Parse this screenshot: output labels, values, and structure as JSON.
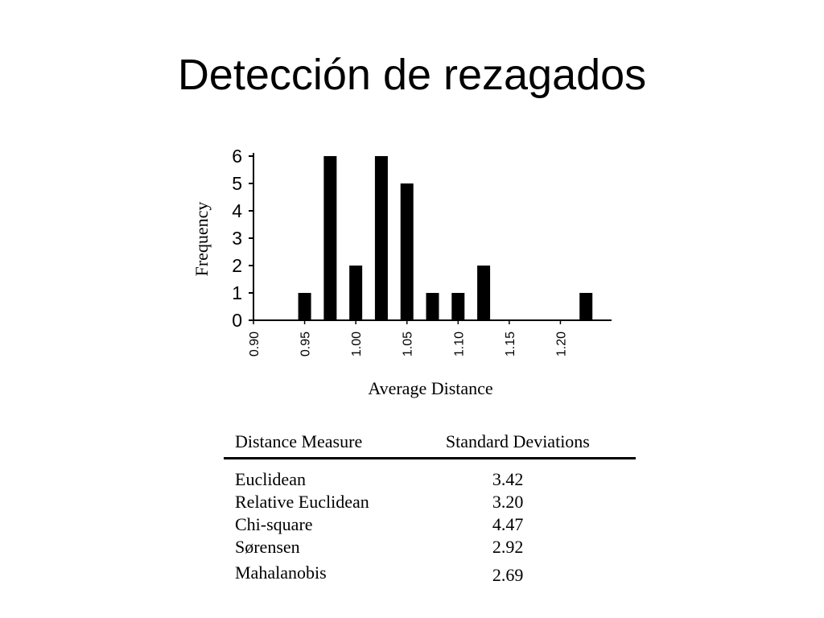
{
  "slide": {
    "title": "Detección de rezagados"
  },
  "chart_data": {
    "type": "bar",
    "xlabel": "Average Distance",
    "ylabel": "Frequency",
    "ylim": [
      0,
      6
    ],
    "xlim": [
      0.9,
      1.25
    ],
    "yticks": [
      "0",
      "1",
      "2",
      "3",
      "4",
      "5",
      "6"
    ],
    "xticks": [
      "0.90",
      "0.95",
      "1.00",
      "1.05",
      "1.10",
      "1.15",
      "1.20"
    ],
    "bin_width": 0.025,
    "bins": [
      {
        "x": 0.95,
        "value": 1
      },
      {
        "x": 0.975,
        "value": 6
      },
      {
        "x": 1.0,
        "value": 2
      },
      {
        "x": 1.025,
        "value": 6
      },
      {
        "x": 1.05,
        "value": 5
      },
      {
        "x": 1.075,
        "value": 1
      },
      {
        "x": 1.1,
        "value": 1
      },
      {
        "x": 1.125,
        "value": 2
      },
      {
        "x": 1.225,
        "value": 1
      }
    ]
  },
  "table": {
    "headers": [
      "Distance Measure",
      "Standard Deviations"
    ],
    "rows": [
      {
        "measure": "Euclidean",
        "sd": "3.42"
      },
      {
        "measure": "Relative Euclidean",
        "sd": "3.20"
      },
      {
        "measure": "Chi-square",
        "sd": "4.47"
      },
      {
        "measure": "Sørensen",
        "sd": "2.92"
      },
      {
        "measure": "Mahalanobis",
        "sd": "2.69"
      }
    ]
  }
}
